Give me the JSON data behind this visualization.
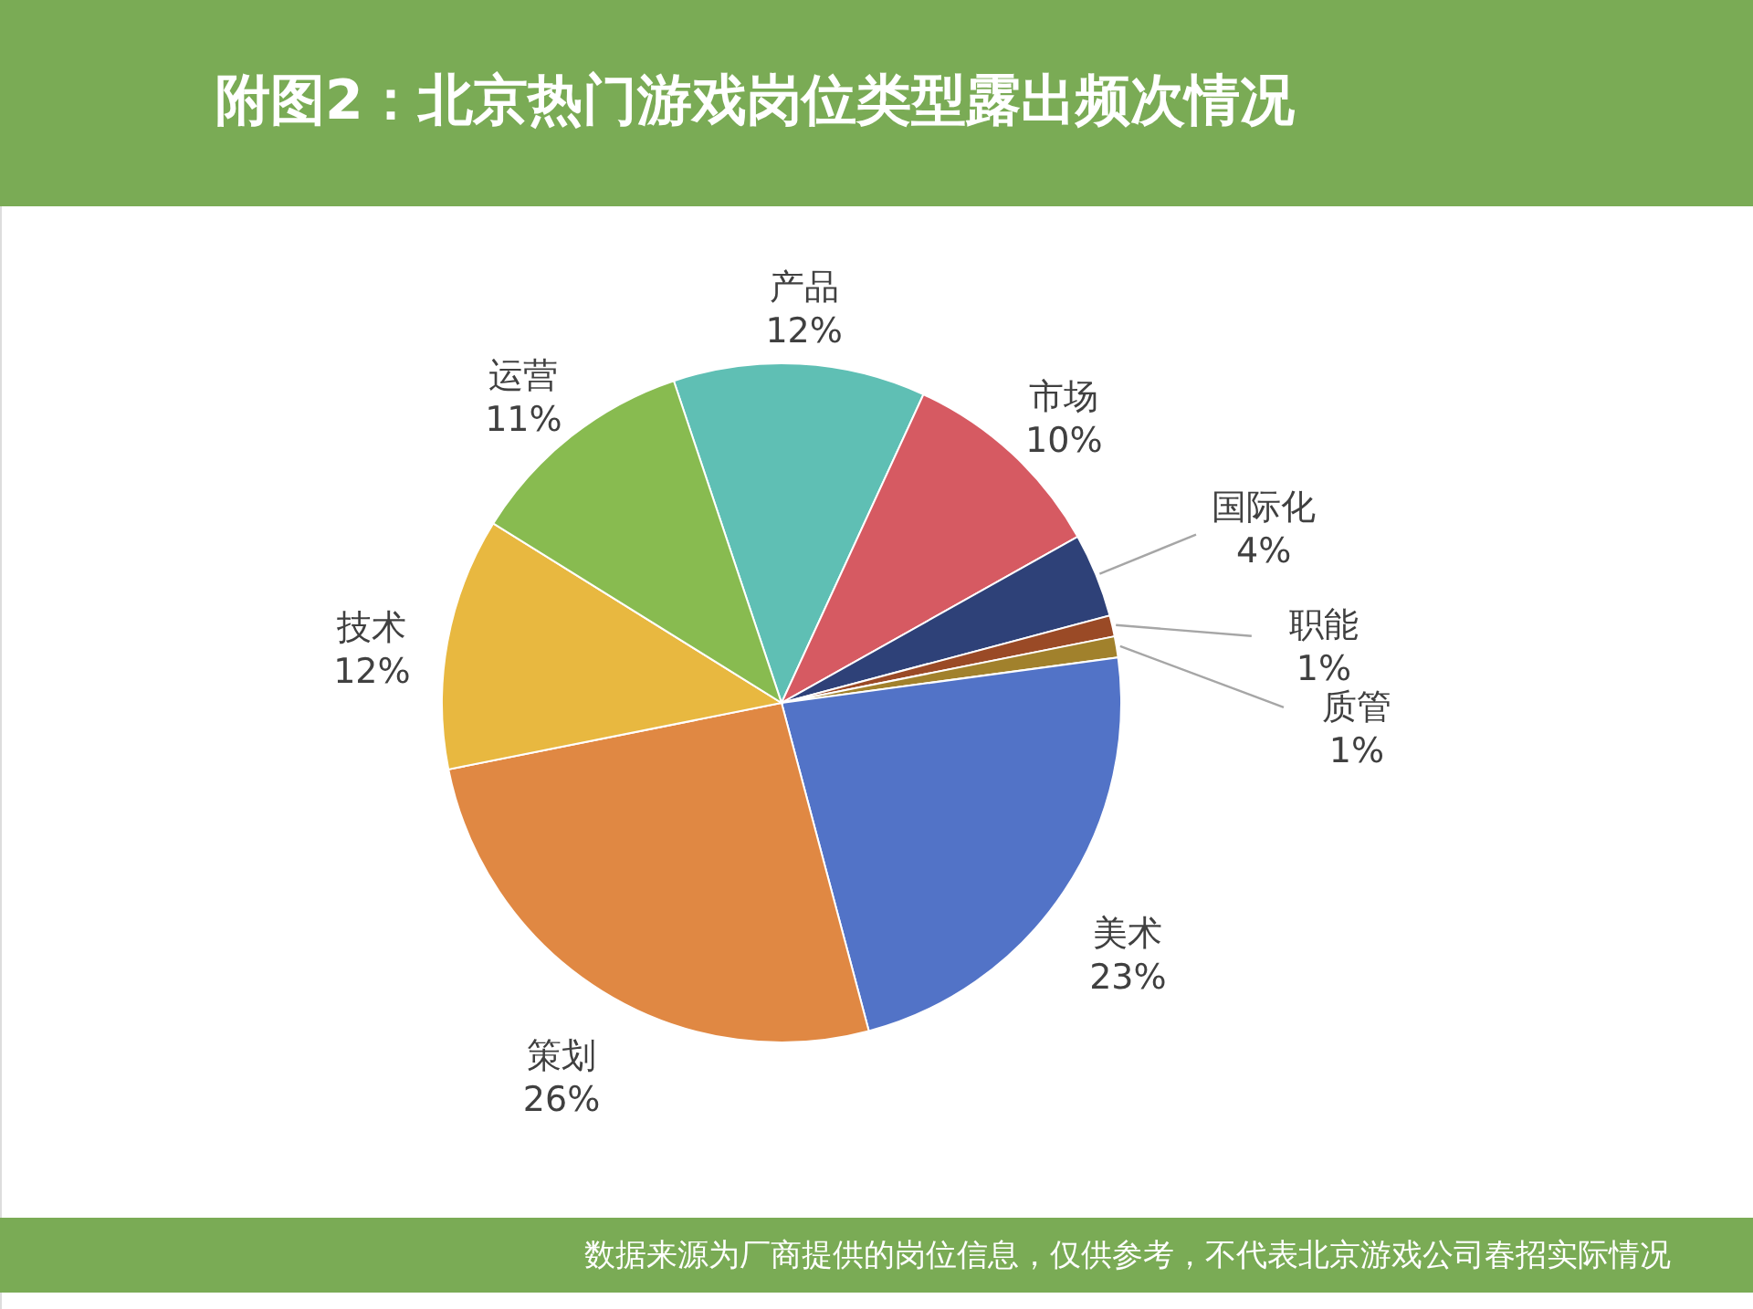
{
  "chart_data": {
    "type": "pie",
    "title": "附图2：北京热门游戏岗位类型露出频次情况",
    "categories": [
      "产品",
      "市场",
      "国际化",
      "职能",
      "质管",
      "美术",
      "策划",
      "技术",
      "运营"
    ],
    "values": [
      12,
      10,
      4,
      1,
      1,
      23,
      26,
      12,
      11
    ],
    "colors": [
      "#5fbfb4",
      "#d65a62",
      "#2e4178",
      "#9a4a26",
      "#a1812c",
      "#5273c7",
      "#e08843",
      "#e8b840",
      "#88bb50"
    ],
    "value_labels": [
      "12%",
      "10%",
      "4%",
      "1%",
      "1%",
      "23%",
      "26%",
      "12%",
      "11%"
    ],
    "annotations": [
      "数据来源为厂商提供的岗位信息，仅供参考，不代表北京游戏公司春招实际情况"
    ]
  }
}
